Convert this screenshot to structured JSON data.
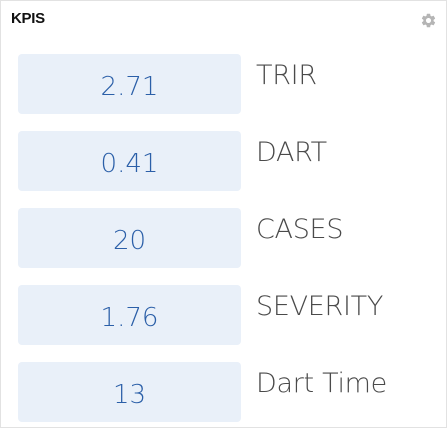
{
  "widget": {
    "title": "KPIS",
    "settings_icon": "gear-icon"
  },
  "kpis": [
    {
      "value": "2.71",
      "label": "TRIR"
    },
    {
      "value": "0.41",
      "label": "DART"
    },
    {
      "value": "20",
      "label": "CASES"
    },
    {
      "value": "1.76",
      "label": "SEVERITY"
    },
    {
      "value": "13",
      "label": "Dart Time"
    }
  ],
  "colors": {
    "value_background": "#e9f0f9",
    "value_text": "#2b5fa8",
    "label_text": "#4a4a4a",
    "border": "#e2e2e2",
    "icon": "#b5b5b5"
  }
}
